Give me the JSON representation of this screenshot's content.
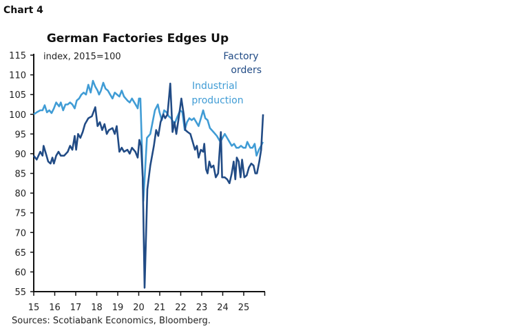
{
  "header": {
    "chart_label": "Chart 4"
  },
  "colors": {
    "factory_orders": "#214b85",
    "industrial_production": "#409cd5",
    "axis": "#111111"
  },
  "chart_data": {
    "type": "line",
    "title": "German Factories Edges Up",
    "subtitle": "index, 2015=100",
    "source": "Sources: Scotiabank Economics, Bloomberg.",
    "xlabel": "",
    "ylabel": "",
    "xlim": [
      2015,
      2026
    ],
    "ylim": [
      55,
      115
    ],
    "x_ticks": [
      2015,
      2016,
      2017,
      2018,
      2019,
      2020,
      2021,
      2022,
      2023,
      2024,
      2025
    ],
    "x_tick_labels": [
      "15",
      "16",
      "17",
      "18",
      "19",
      "20",
      "21",
      "22",
      "23",
      "24",
      "25"
    ],
    "y_ticks": [
      55,
      60,
      65,
      70,
      75,
      80,
      85,
      90,
      95,
      100,
      105,
      110,
      115
    ],
    "y_tick_labels": [
      "55",
      "60",
      "65",
      "70",
      "75",
      "80",
      "85",
      "90",
      "95",
      "100",
      "105",
      "110",
      "115"
    ],
    "grid": false,
    "legend": "inline labels, top-right",
    "series": [
      {
        "name": "Factory orders",
        "label_lines": [
          "Factory",
          "orders"
        ],
        "color": "#214b85",
        "x": [
          2015.0,
          2015.14,
          2015.31,
          2015.42,
          2015.47,
          2015.58,
          2015.69,
          2015.8,
          2015.89,
          2015.96,
          2016.07,
          2016.18,
          2016.29,
          2016.45,
          2016.62,
          2016.73,
          2016.84,
          2016.95,
          2017.02,
          2017.11,
          2017.22,
          2017.33,
          2017.44,
          2017.6,
          2017.77,
          2017.93,
          2018.04,
          2018.15,
          2018.26,
          2018.37,
          2018.48,
          2018.58,
          2018.75,
          2018.86,
          2018.95,
          2019.08,
          2019.19,
          2019.3,
          2019.46,
          2019.57,
          2019.68,
          2019.84,
          2019.95,
          2020.03,
          2020.11,
          2020.19,
          2020.28,
          2020.41,
          2020.55,
          2020.72,
          2020.83,
          2020.93,
          2021.04,
          2021.17,
          2021.26,
          2021.37,
          2021.5,
          2021.61,
          2021.7,
          2021.79,
          2021.9,
          2022.03,
          2022.14,
          2022.22,
          2022.33,
          2022.46,
          2022.57,
          2022.68,
          2022.77,
          2022.85,
          2022.96,
          2023.07,
          2023.12,
          2023.21,
          2023.28,
          2023.36,
          2023.45,
          2023.56,
          2023.67,
          2023.78,
          2023.91,
          2023.97,
          2024.1,
          2024.21,
          2024.32,
          2024.43,
          2024.52,
          2024.6,
          2024.67,
          2024.76,
          2024.85,
          2024.92,
          2025.03,
          2025.14,
          2025.25,
          2025.36,
          2025.47,
          2025.55,
          2025.63,
          2025.74,
          2025.83,
          2025.92
        ],
        "y": [
          89.5,
          88.5,
          90.5,
          89.5,
          92,
          90,
          88,
          87.5,
          89,
          87.5,
          89.5,
          90.5,
          89.5,
          89.5,
          90.5,
          92,
          91,
          94.5,
          91,
          95,
          94,
          95.5,
          97.5,
          99,
          99.5,
          101.8,
          97,
          98,
          96,
          97.5,
          95,
          96,
          96.5,
          95,
          97,
          90.5,
          91.5,
          90.5,
          91,
          90,
          91.5,
          90.5,
          89,
          93.5,
          92,
          84,
          56,
          81,
          87,
          92,
          96,
          94.5,
          98,
          100,
          99,
          100,
          107.8,
          95.5,
          98,
          95,
          99,
          104,
          100,
          96,
          95.5,
          95,
          93,
          91,
          92,
          89,
          91,
          90.5,
          92.5,
          86,
          85,
          88,
          86.5,
          87,
          84,
          85,
          95.5,
          84,
          84,
          83.5,
          82.5,
          85,
          88,
          83.5,
          89,
          88,
          84,
          88.5,
          84,
          84.5,
          86.5,
          87.5,
          87,
          85,
          85,
          88,
          91,
          100
        ]
      },
      {
        "name": "Industrial production",
        "label_lines": [
          "Industrial",
          "production"
        ],
        "color": "#409cd5",
        "x": [
          2015.0,
          2015.14,
          2015.31,
          2015.42,
          2015.52,
          2015.63,
          2015.74,
          2015.85,
          2015.96,
          2016.07,
          2016.21,
          2016.29,
          2016.4,
          2016.51,
          2016.62,
          2016.73,
          2016.84,
          2016.95,
          2017.05,
          2017.16,
          2017.27,
          2017.38,
          2017.49,
          2017.6,
          2017.71,
          2017.82,
          2017.93,
          2018.04,
          2018.11,
          2018.2,
          2018.31,
          2018.42,
          2018.53,
          2018.64,
          2018.75,
          2018.86,
          2018.97,
          2019.08,
          2019.19,
          2019.3,
          2019.46,
          2019.57,
          2019.68,
          2019.79,
          2019.9,
          2019.95,
          2020.01,
          2020.08,
          2020.15,
          2020.22,
          2020.39,
          2020.55,
          2020.66,
          2020.77,
          2020.91,
          2020.99,
          2021.1,
          2021.21,
          2021.32,
          2021.43,
          2021.54,
          2021.7,
          2021.81,
          2021.97,
          2022.08,
          2022.19,
          2022.3,
          2022.41,
          2022.52,
          2022.63,
          2022.74,
          2022.85,
          2022.96,
          2023.07,
          2023.17,
          2023.28,
          2023.39,
          2023.56,
          2023.72,
          2023.89,
          2023.99,
          2024.1,
          2024.21,
          2024.32,
          2024.43,
          2024.54,
          2024.65,
          2024.76,
          2024.87,
          2024.98,
          2025.09,
          2025.17,
          2025.31,
          2025.42,
          2025.52,
          2025.61,
          2025.72,
          2025.83,
          2025.91
        ],
        "y": [
          100,
          100.5,
          101,
          101,
          102.3,
          100.5,
          101,
          100.3,
          101.5,
          103,
          102,
          103,
          101,
          102.5,
          102.5,
          103,
          102.5,
          101.5,
          103.5,
          104,
          105,
          105.5,
          105,
          107.5,
          105.5,
          108.5,
          107,
          106,
          105,
          106,
          108,
          106.5,
          106,
          105,
          104,
          105.5,
          105,
          104.5,
          106,
          104.5,
          103.5,
          103,
          104,
          103,
          102,
          101.5,
          104,
          104,
          92,
          78,
          94,
          95,
          98,
          101,
          102.5,
          100.5,
          98.5,
          101,
          100.5,
          99.5,
          99,
          97.5,
          99,
          101,
          100.5,
          96,
          98,
          99,
          98.5,
          99,
          98,
          97,
          99,
          101,
          99,
          98.5,
          96.5,
          95.5,
          94.5,
          93,
          94,
          95,
          94,
          93,
          92,
          92.5,
          91.5,
          91.5,
          92,
          91.5,
          91.5,
          93,
          91.5,
          91.5,
          92.5,
          89.5,
          91,
          92,
          93
        ]
      }
    ]
  }
}
